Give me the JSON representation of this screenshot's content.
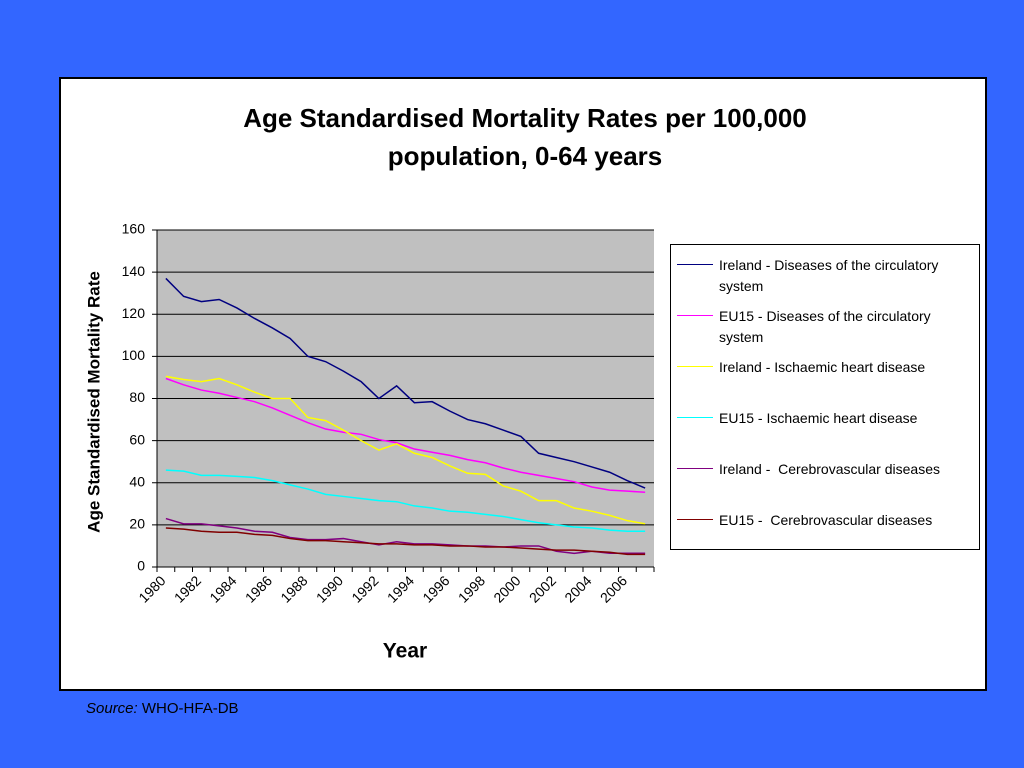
{
  "chart_data": {
    "type": "line",
    "title": "Age Standardised Mortality Rates per 100,000 population, 0-64 years",
    "x_label": "Year",
    "y_label": "Age Standardised Mortality Rate",
    "categories": [
      "1980",
      null,
      "1982",
      null,
      "1984",
      null,
      "1986",
      null,
      "1988",
      null,
      "1990",
      null,
      "1992",
      null,
      "1994",
      null,
      "1996",
      null,
      "1998",
      null,
      "2000",
      null,
      "2002",
      null,
      "2004",
      null,
      "2006",
      null
    ],
    "series": [
      {
        "name": "Ireland - Diseases of the circulatory system",
        "color": "#000080",
        "values": [
          137,
          128.5,
          126,
          127,
          123,
          118,
          113.5,
          108.5,
          100,
          97.5,
          93,
          88,
          80,
          86,
          78,
          78.5,
          74,
          70,
          68,
          65,
          62,
          54,
          52,
          50,
          47.5,
          45,
          41,
          37.5
        ]
      },
      {
        "name": "EU15 - Diseases of the circulatory system",
        "color": "#ff00ff",
        "values": [
          89.5,
          86.5,
          84,
          82.5,
          80.5,
          78.5,
          75.5,
          72,
          68.5,
          65.5,
          64,
          63,
          60.5,
          59,
          56,
          54.5,
          53,
          51,
          49.5,
          47,
          45,
          43.5,
          42,
          40.5,
          38,
          36.5,
          36,
          35.5
        ]
      },
      {
        "name": "Ireland - Ischaemic heart disease",
        "color": "#ffff00",
        "values": [
          90.5,
          89,
          88,
          89.5,
          86.5,
          83,
          80,
          80,
          71,
          69.5,
          65,
          60,
          55.5,
          58.5,
          54,
          52,
          48,
          44.5,
          44,
          38.5,
          36,
          31.5,
          31.5,
          28,
          26.5,
          24.5,
          22,
          20.5
        ]
      },
      {
        "name": "EU15 - Ischaemic heart disease",
        "color": "#00ffff",
        "values": [
          46,
          45.5,
          43.5,
          43.5,
          43,
          42.5,
          41,
          39,
          37,
          34.5,
          33.5,
          32.5,
          31.5,
          31,
          29,
          28,
          26.5,
          26,
          25,
          24,
          22.5,
          21,
          20,
          19,
          18.5,
          17.5,
          17,
          17
        ]
      },
      {
        "name": "Ireland -  Cerebrovascular diseases",
        "color": "#800080",
        "values": [
          23,
          20.5,
          20.5,
          19.5,
          18.5,
          17,
          16.5,
          14,
          13,
          13,
          13.5,
          12,
          10.5,
          12,
          11,
          11,
          10.5,
          10,
          10,
          9.5,
          10,
          10,
          7.5,
          6.5,
          7.5,
          6.5,
          6.5,
          6.5
        ]
      },
      {
        "name": "EU15 -  Cerebrovascular diseases",
        "color": "#800000",
        "values": [
          18.5,
          18,
          17,
          16.5,
          16.5,
          15.5,
          15,
          13.5,
          12.5,
          12.5,
          12,
          11.5,
          11,
          11,
          10.5,
          10.5,
          10,
          10,
          9.5,
          9.5,
          9,
          8.5,
          8,
          8,
          7.5,
          7,
          6,
          6
        ]
      }
    ],
    "ylim": [
      0,
      160
    ],
    "yticks": [
      0,
      20,
      40,
      60,
      80,
      100,
      120,
      140,
      160
    ],
    "grid": true,
    "legend": "right",
    "source_label": "Source:",
    "source": "WHO-HFA-DB"
  }
}
